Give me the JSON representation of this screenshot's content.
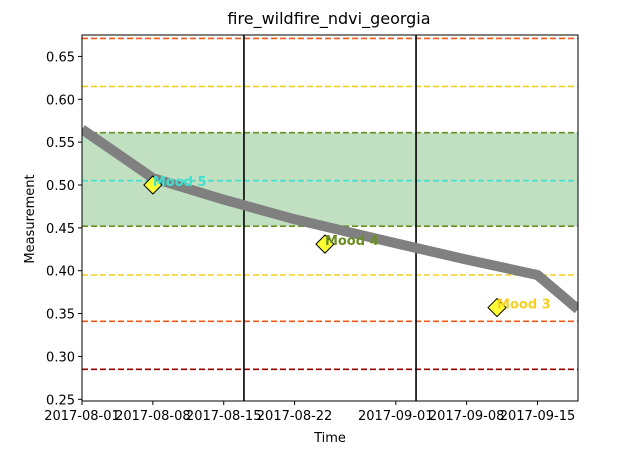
{
  "chart_data": {
    "type": "line",
    "title": "fire_wildfire_ndvi_georgia",
    "xlabel": "Time",
    "ylabel": "Measurement",
    "xlim": [
      "2017-08-01",
      "2017-09-19"
    ],
    "ylim": [
      0.248,
      0.675
    ],
    "x_ticks": [
      "2017-08-01",
      "2017-08-08",
      "2017-08-15",
      "2017-08-22",
      "2017-09-01",
      "2017-09-08",
      "2017-09-15"
    ],
    "y_ticks": [
      "0.25",
      "0.30",
      "0.35",
      "0.40",
      "0.45",
      "0.50",
      "0.55",
      "0.60",
      "0.65"
    ],
    "grid": false,
    "series": [
      {
        "color": "#808080",
        "x": [
          "2017-08-01",
          "2017-08-08",
          "2017-08-15",
          "2017-08-22",
          "2017-09-01",
          "2017-09-08",
          "2017-09-15",
          "2017-09-19"
        ],
        "y": [
          0.565,
          0.508,
          0.483,
          0.46,
          0.432,
          0.413,
          0.395,
          0.355
        ]
      }
    ],
    "band": {
      "y_min": 0.452,
      "y_max": 0.561,
      "color": "#c1e0c1"
    },
    "horizontal_lines": [
      {
        "y": 0.671,
        "color": "#f05a14"
      },
      {
        "y": 0.615,
        "color": "#f5d020"
      },
      {
        "y": 0.561,
        "color": "#6b8e23"
      },
      {
        "y": 0.505,
        "color": "#40e0d0"
      },
      {
        "y": 0.452,
        "color": "#6b8e23"
      },
      {
        "y": 0.395,
        "color": "#f5d020"
      },
      {
        "y": 0.341,
        "color": "#f05a14"
      },
      {
        "y": 0.285,
        "color": "#990000"
      }
    ],
    "vertical_lines": [
      "2017-08-17",
      "2017-09-03"
    ],
    "annotations": [
      {
        "x": "2017-08-08",
        "y": 0.5,
        "text": "Mood 5",
        "color": "#40e0d0"
      },
      {
        "x": "2017-08-25",
        "y": 0.431,
        "text": "Mood 4",
        "color": "#6b8e23"
      },
      {
        "x": "2017-09-11",
        "y": 0.357,
        "text": "Mood 3",
        "color": "#f5d020"
      }
    ]
  }
}
